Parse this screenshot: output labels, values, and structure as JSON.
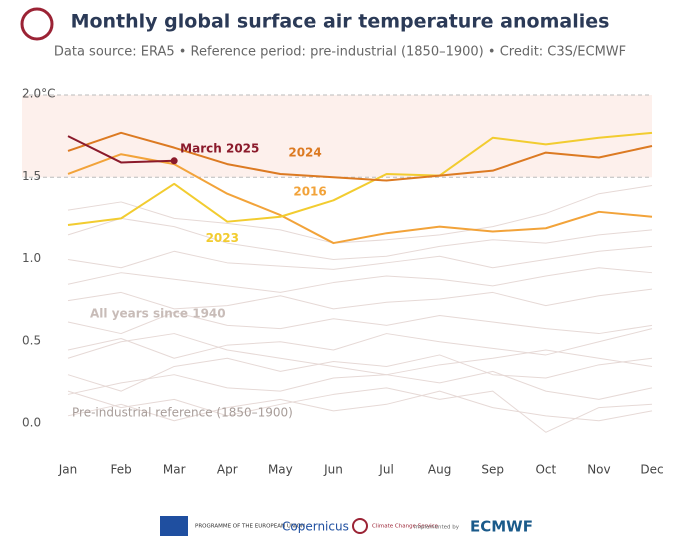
{
  "chart_data": {
    "type": "line",
    "title": "Monthly global surface air temperature anomalies",
    "subtitle": "Data source: ERA5 • Reference period: pre-industrial (1850–1900) • Credit: C3S/ECMWF",
    "categories": [
      "Jan",
      "Feb",
      "Mar",
      "Apr",
      "May",
      "Jun",
      "Jul",
      "Aug",
      "Sep",
      "Oct",
      "Nov",
      "Dec"
    ],
    "ylim": [
      -0.1,
      2.0
    ],
    "yticks": [
      {
        "value": 0,
        "label": "0.0"
      },
      0.5,
      {
        "value": 1,
        "label": "1.0"
      },
      1.5,
      {
        "value": 2,
        "label": "2.0°C"
      }
    ],
    "shaded_range": [
      1.5,
      2.0
    ],
    "background_color": "#e6d9d6",
    "background_series": [
      [
        0.05,
        0.12,
        0.02,
        0.1,
        0.15,
        0.08,
        0.12,
        0.2,
        0.1,
        0.05,
        0.02,
        0.08
      ],
      [
        0.18,
        0.25,
        0.3,
        0.22,
        0.2,
        0.28,
        0.3,
        0.25,
        0.32,
        0.2,
        0.15,
        0.22
      ],
      [
        0.3,
        0.2,
        0.35,
        0.4,
        0.32,
        0.38,
        0.35,
        0.42,
        0.3,
        0.28,
        0.36,
        0.4
      ],
      [
        0.45,
        0.52,
        0.4,
        0.48,
        0.5,
        0.45,
        0.55,
        0.5,
        0.46,
        0.42,
        0.5,
        0.58
      ],
      [
        0.62,
        0.55,
        0.68,
        0.6,
        0.58,
        0.64,
        0.6,
        0.66,
        0.62,
        0.58,
        0.55,
        0.6
      ],
      [
        0.75,
        0.8,
        0.7,
        0.72,
        0.78,
        0.7,
        0.74,
        0.76,
        0.8,
        0.72,
        0.78,
        0.82
      ],
      [
        0.85,
        0.92,
        0.88,
        0.84,
        0.8,
        0.86,
        0.9,
        0.88,
        0.84,
        0.9,
        0.95,
        0.92
      ],
      [
        1.0,
        0.95,
        1.05,
        0.98,
        0.96,
        0.94,
        0.98,
        1.02,
        0.95,
        1.0,
        1.05,
        1.08
      ],
      [
        1.15,
        1.25,
        1.2,
        1.1,
        1.05,
        1.0,
        1.02,
        1.08,
        1.12,
        1.1,
        1.15,
        1.18
      ],
      [
        1.3,
        1.35,
        1.25,
        1.22,
        1.18,
        1.1,
        1.12,
        1.15,
        1.2,
        1.28,
        1.4,
        1.45
      ],
      [
        0.2,
        0.1,
        0.15,
        0.05,
        0.12,
        0.18,
        0.22,
        0.15,
        0.2,
        -0.05,
        0.1,
        0.12
      ],
      [
        0.4,
        0.5,
        0.55,
        0.45,
        0.4,
        0.35,
        0.3,
        0.36,
        0.4,
        0.45,
        0.4,
        0.35
      ]
    ],
    "series": [
      {
        "name": "2016",
        "color": "#f2a33a",
        "values": [
          1.52,
          1.64,
          1.58,
          1.4,
          1.27,
          1.1,
          1.16,
          1.2,
          1.17,
          1.19,
          1.29,
          1.26
        ]
      },
      {
        "name": "2023",
        "color": "#f2cc30",
        "values": [
          1.21,
          1.25,
          1.46,
          1.23,
          1.26,
          1.36,
          1.52,
          1.51,
          1.74,
          1.7,
          1.74,
          1.77
        ]
      },
      {
        "name": "2024",
        "color": "#dc7a22",
        "values": [
          1.66,
          1.77,
          1.68,
          1.58,
          1.52,
          1.5,
          1.48,
          1.51,
          1.54,
          1.65,
          1.62,
          1.69
        ]
      },
      {
        "name": "March 2025",
        "color": "#8b1a2b",
        "values": [
          1.75,
          1.59,
          1.6,
          null,
          null,
          null,
          null,
          null,
          null,
          null,
          null,
          null
        ]
      }
    ],
    "annotations": [
      "All years since 1940",
      "Pre-industrial reference (1850–1900)"
    ]
  },
  "footer": {
    "eu": "PROGRAMME OF THE EUROPEAN UNION",
    "copernicus": "Copernicus",
    "c3s": "Climate Change Service",
    "implemented": "implemented by",
    "ecmwf": "ECMWF"
  }
}
